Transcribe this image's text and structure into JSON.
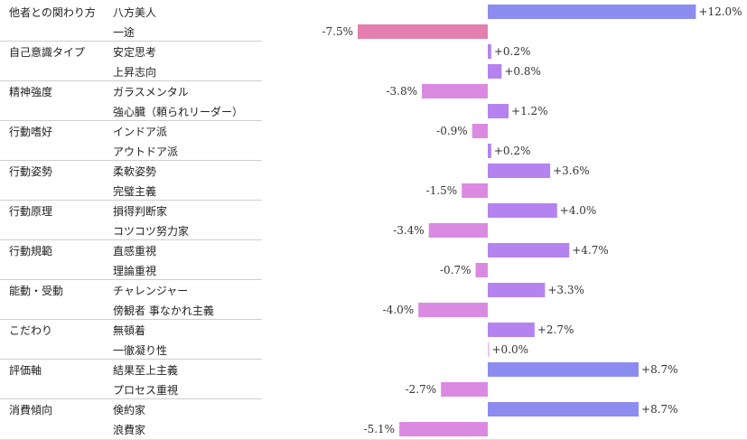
{
  "chart_data": {
    "type": "bar",
    "orientation": "horizontal",
    "title": "",
    "xlabel": "",
    "ylabel": "",
    "xlim": [
      -12,
      12
    ],
    "grid": false,
    "legend": "none",
    "colors": {
      "positive_strong": "#8c8cf0",
      "positive": "#b483f0",
      "negative": "#da8ae0",
      "negative_strong": "#e37faf",
      "neutral": "#e7b7f0"
    },
    "groups": [
      {
        "category": "他者との関わり方",
        "items": [
          {
            "label": "八方美人",
            "value": 12.0,
            "display": "+12.0%"
          },
          {
            "label": "一途",
            "value": -7.5,
            "display": "-7.5%"
          }
        ]
      },
      {
        "category": "自己意識タイプ",
        "items": [
          {
            "label": "安定思考",
            "value": 0.2,
            "display": "+0.2%"
          },
          {
            "label": "上昇志向",
            "value": 0.8,
            "display": "+0.8%"
          }
        ]
      },
      {
        "category": "精神強度",
        "items": [
          {
            "label": "ガラスメンタル",
            "value": -3.8,
            "display": "-3.8%"
          },
          {
            "label": "強心臓（頼られリーダー）",
            "value": 1.2,
            "display": "+1.2%"
          }
        ]
      },
      {
        "category": "行動嗜好",
        "items": [
          {
            "label": "インドア派",
            "value": -0.9,
            "display": "-0.9%"
          },
          {
            "label": "アウトドア派",
            "value": 0.2,
            "display": "+0.2%"
          }
        ]
      },
      {
        "category": "行動姿勢",
        "items": [
          {
            "label": "柔軟姿勢",
            "value": 3.6,
            "display": "+3.6%"
          },
          {
            "label": "完璧主義",
            "value": -1.5,
            "display": "-1.5%"
          }
        ]
      },
      {
        "category": "行動原理",
        "items": [
          {
            "label": "損得判断家",
            "value": 4.0,
            "display": "+4.0%"
          },
          {
            "label": "コツコツ努力家",
            "value": -3.4,
            "display": "-3.4%"
          }
        ]
      },
      {
        "category": "行動規範",
        "items": [
          {
            "label": "直感重視",
            "value": 4.7,
            "display": "+4.7%"
          },
          {
            "label": "理論重視",
            "value": -0.7,
            "display": "-0.7%"
          }
        ]
      },
      {
        "category": "能動・受動",
        "items": [
          {
            "label": "チャレンジャー",
            "value": 3.3,
            "display": "+3.3%"
          },
          {
            "label": "傍観者 事なかれ主義",
            "value": -4.0,
            "display": "-4.0%"
          }
        ]
      },
      {
        "category": "こだわり",
        "items": [
          {
            "label": "無頓着",
            "value": 2.7,
            "display": "+2.7%"
          },
          {
            "label": "一徹凝り性",
            "value": 0.0,
            "display": "+0.0%"
          }
        ]
      },
      {
        "category": "評価軸",
        "items": [
          {
            "label": "結果至上主義",
            "value": 8.7,
            "display": "+8.7%"
          },
          {
            "label": "プロセス重視",
            "value": -2.7,
            "display": "-2.7%"
          }
        ]
      },
      {
        "category": "消費傾向",
        "items": [
          {
            "label": "倹約家",
            "value": 8.7,
            "display": "+8.7%"
          },
          {
            "label": "浪費家",
            "value": -5.1,
            "display": "-5.1%"
          }
        ]
      }
    ]
  }
}
